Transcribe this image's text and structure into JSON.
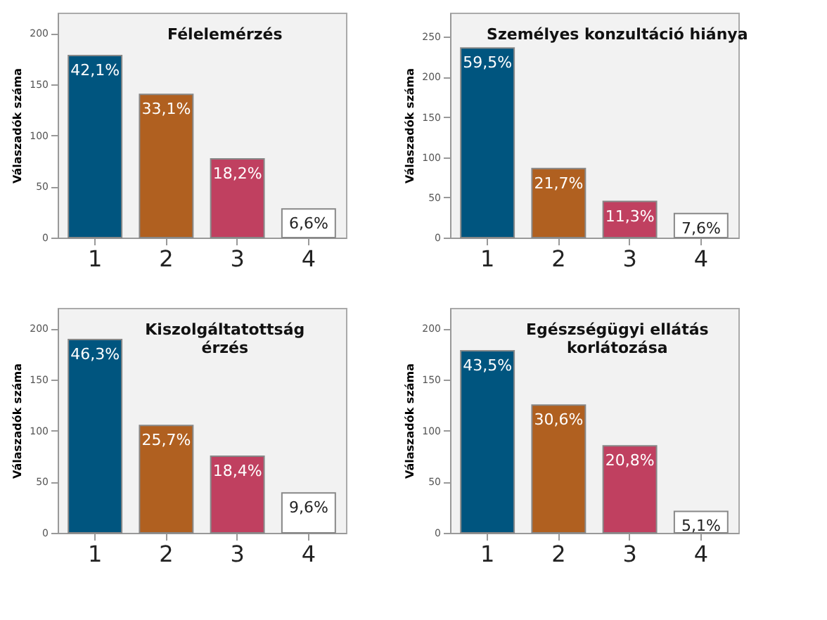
{
  "chart_data": [
    {
      "type": "bar",
      "title": "Félelemérzés",
      "ylabel": "Válaszadók száma",
      "categories": [
        "1",
        "2",
        "3",
        "4"
      ],
      "values": [
        178,
        140,
        77,
        28
      ],
      "colors": [
        "#00557f",
        "#b06020",
        "#c04060",
        "#ffffff"
      ],
      "annotations": [
        {
          "text": "42,1%",
          "x": "1",
          "y": 178
        },
        {
          "text": "33,1%",
          "x": "2",
          "y": 140
        },
        {
          "text": "18,2%",
          "x": "3",
          "y": 77
        },
        {
          "text": "6,6%",
          "x": "4",
          "y": 28
        }
      ],
      "ylim": [
        0,
        220
      ],
      "yticks": [
        0,
        50,
        100,
        150,
        200
      ],
      "grid": false
    },
    {
      "type": "bar",
      "title": "Személyes konzultáció hiánya",
      "ylabel": "Válaszadók száma",
      "categories": [
        "1",
        "2",
        "3",
        "4"
      ],
      "values": [
        236,
        86,
        45,
        30
      ],
      "colors": [
        "#00557f",
        "#b06020",
        "#c04060",
        "#ffffff"
      ],
      "annotations": [
        {
          "text": "59,5%",
          "x": "1",
          "y": 236
        },
        {
          "text": "21,7%",
          "x": "2",
          "y": 86
        },
        {
          "text": "11,3%",
          "x": "3",
          "y": 45
        },
        {
          "text": "7,6%",
          "x": "4",
          "y": 30
        }
      ],
      "ylim": [
        0,
        280
      ],
      "yticks": [
        0,
        50,
        100,
        150,
        200,
        250
      ],
      "grid": false
    },
    {
      "type": "bar",
      "title": "Kiszolgáltatottság\nérzés",
      "ylabel": "Válaszadók száma",
      "categories": [
        "1",
        "2",
        "3",
        "4"
      ],
      "values": [
        189,
        105,
        75,
        39
      ],
      "colors": [
        "#00557f",
        "#b06020",
        "#c04060",
        "#ffffff"
      ],
      "annotations": [
        {
          "text": "46,3%",
          "x": "1",
          "y": 189
        },
        {
          "text": "25,7%",
          "x": "2",
          "y": 105
        },
        {
          "text": "18,4%",
          "x": "3",
          "y": 75
        },
        {
          "text": "9,6%",
          "x": "4",
          "y": 39
        }
      ],
      "ylim": [
        0,
        220
      ],
      "yticks": [
        0,
        50,
        100,
        150,
        200
      ],
      "grid": false
    },
    {
      "type": "bar",
      "title": "Egészségügyi ellátás\nkorlátozása",
      "ylabel": "Válaszadók száma",
      "categories": [
        "1",
        "2",
        "3",
        "4"
      ],
      "values": [
        178,
        125,
        85,
        21
      ],
      "colors": [
        "#00557f",
        "#b06020",
        "#c04060",
        "#ffffff"
      ],
      "annotations": [
        {
          "text": "43,5%",
          "x": "1",
          "y": 178
        },
        {
          "text": "30,6%",
          "x": "2",
          "y": 125
        },
        {
          "text": "20,8%",
          "x": "3",
          "y": 85
        },
        {
          "text": "5,1%",
          "x": "4",
          "y": 21
        }
      ],
      "ylim": [
        0,
        220
      ],
      "yticks": [
        0,
        50,
        100,
        150,
        200
      ],
      "grid": false
    }
  ]
}
